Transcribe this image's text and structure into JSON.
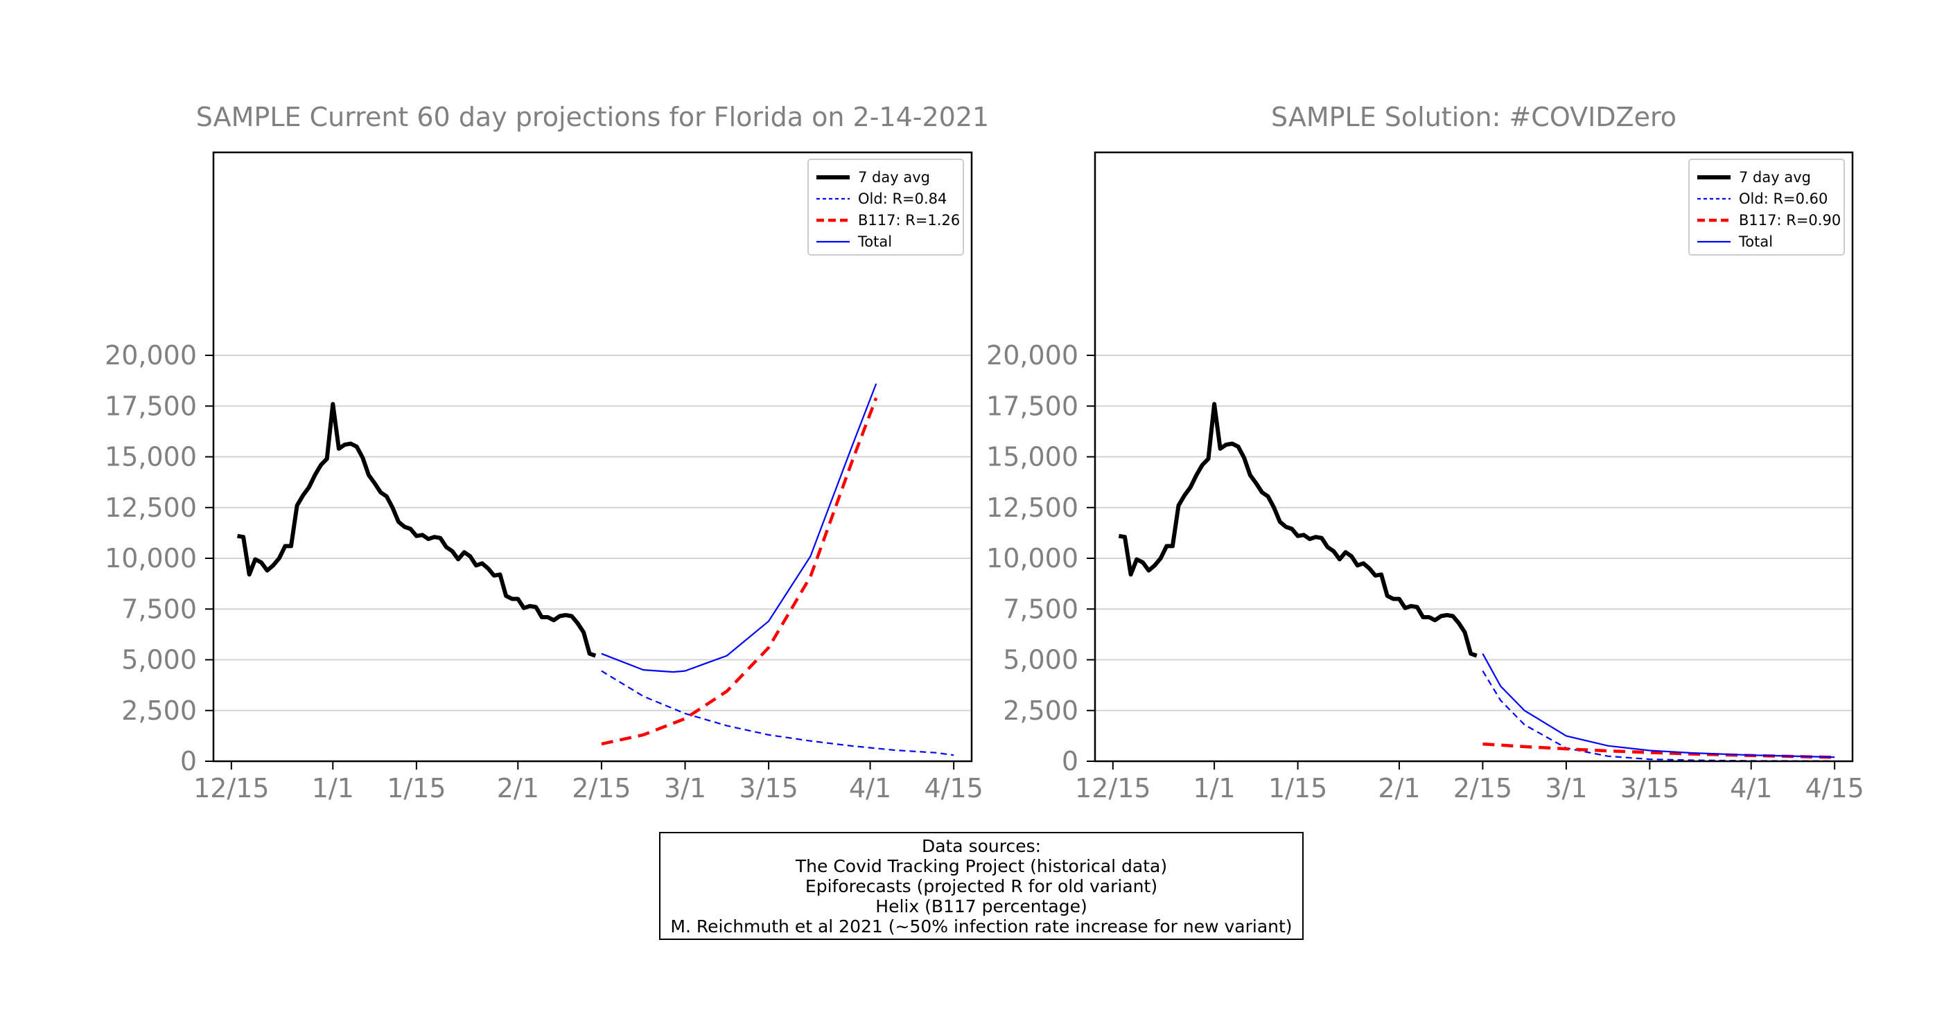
{
  "colors": {
    "actual": "#000000",
    "old": "#0000ff",
    "b117": "#ff0000",
    "total": "#0000ff",
    "grid": "#d3d3d3",
    "text": "#808080"
  },
  "chart_data": [
    {
      "type": "line",
      "title": "SAMPLE Current 60 day projections for Florida on 2-14-2021",
      "xlabel": "",
      "ylabel": "",
      "ylim": [
        0,
        30000
      ],
      "xlim": [
        "2020-12-12",
        "2021-04-18"
      ],
      "grid": "horizontal",
      "legend_position": "top-right",
      "yticks": [
        0,
        2500,
        5000,
        7500,
        10000,
        12500,
        15000,
        17500,
        20000
      ],
      "ytick_labels": [
        "0",
        "2,500",
        "5,000",
        "7,500",
        "10,000",
        "12,500",
        "15,000",
        "17,500",
        "20,000"
      ],
      "xticks": [
        "2020-12-15",
        "2021-01-01",
        "2021-01-15",
        "2021-02-01",
        "2021-02-15",
        "2021-03-01",
        "2021-03-15",
        "2021-04-01",
        "2021-04-15"
      ],
      "xtick_labels": [
        "12/15",
        "1/1",
        "1/15",
        "2/1",
        "2/15",
        "3/1",
        "3/15",
        "4/1",
        "4/15"
      ],
      "series": [
        {
          "name": "7 day avg",
          "style": "actual",
          "x": [
            "2020-12-16",
            "2020-12-17",
            "2020-12-18",
            "2020-12-19",
            "2020-12-20",
            "2020-12-21",
            "2020-12-22",
            "2020-12-23",
            "2020-12-24",
            "2020-12-25",
            "2020-12-26",
            "2020-12-27",
            "2020-12-28",
            "2020-12-29",
            "2020-12-30",
            "2020-12-31",
            "2021-01-01",
            "2021-01-02",
            "2021-01-03",
            "2021-01-04",
            "2021-01-05",
            "2021-01-06",
            "2021-01-07",
            "2021-01-08",
            "2021-01-09",
            "2021-01-10",
            "2021-01-11",
            "2021-01-12",
            "2021-01-13",
            "2021-01-14",
            "2021-01-15",
            "2021-01-16",
            "2021-01-17",
            "2021-01-18",
            "2021-01-19",
            "2021-01-20",
            "2021-01-21",
            "2021-01-22",
            "2021-01-23",
            "2021-01-24",
            "2021-01-25",
            "2021-01-26",
            "2021-01-27",
            "2021-01-28",
            "2021-01-29",
            "2021-01-30",
            "2021-01-31",
            "2021-02-01",
            "2021-02-02",
            "2021-02-03",
            "2021-02-04",
            "2021-02-05",
            "2021-02-06",
            "2021-02-07",
            "2021-02-08",
            "2021-02-09",
            "2021-02-10",
            "2021-02-11",
            "2021-02-12",
            "2021-02-13",
            "2021-02-14"
          ],
          "y": [
            11100,
            11050,
            9200,
            9950,
            9800,
            9400,
            9650,
            10000,
            10600,
            10600,
            12600,
            13100,
            13500,
            14100,
            14600,
            14900,
            17600,
            15400,
            15600,
            15650,
            15500,
            14950,
            14100,
            13700,
            13250,
            13050,
            12500,
            11800,
            11550,
            11450,
            11100,
            11150,
            10950,
            11050,
            11000,
            10550,
            10350,
            9950,
            10300,
            10100,
            9650,
            9750,
            9500,
            9150,
            9200,
            8150,
            8000,
            8000,
            7550,
            7650,
            7600,
            7100,
            7100,
            6950,
            7150,
            7200,
            7150,
            6800,
            6350,
            5300,
            5200
          ]
        },
        {
          "name": "Old: R=0.84",
          "style": "old",
          "x": [
            "2021-02-15",
            "2021-02-22",
            "2021-03-01",
            "2021-03-08",
            "2021-03-15",
            "2021-03-22",
            "2021-03-29",
            "2021-04-05",
            "2021-04-12",
            "2021-04-15"
          ],
          "y": [
            4450,
            3200,
            2350,
            1750,
            1300,
            1000,
            750,
            550,
            420,
            300
          ]
        },
        {
          "name": "B117: R=1.26",
          "style": "b117",
          "x": [
            "2021-02-15",
            "2021-02-22",
            "2021-03-01",
            "2021-03-08",
            "2021-03-15",
            "2021-03-22",
            "2021-03-29",
            "2021-04-02"
          ],
          "y": [
            850,
            1300,
            2100,
            3450,
            5600,
            9100,
            14800,
            17900
          ]
        },
        {
          "name": "Total",
          "style": "total",
          "x": [
            "2021-02-15",
            "2021-02-22",
            "2021-02-27",
            "2021-03-01",
            "2021-03-08",
            "2021-03-15",
            "2021-03-22",
            "2021-03-29",
            "2021-04-02"
          ],
          "y": [
            5300,
            4500,
            4400,
            4450,
            5200,
            6900,
            10100,
            15550,
            18600
          ]
        }
      ]
    },
    {
      "type": "line",
      "title": "SAMPLE Solution: #COVIDZero",
      "xlabel": "",
      "ylabel": "",
      "ylim": [
        0,
        30000
      ],
      "xlim": [
        "2020-12-12",
        "2021-04-18"
      ],
      "grid": "horizontal",
      "legend_position": "top-right",
      "yticks": [
        0,
        2500,
        5000,
        7500,
        10000,
        12500,
        15000,
        17500,
        20000
      ],
      "ytick_labels": [
        "0",
        "2,500",
        "5,000",
        "7,500",
        "10,000",
        "12,500",
        "15,000",
        "17,500",
        "20,000"
      ],
      "xticks": [
        "2020-12-15",
        "2021-01-01",
        "2021-01-15",
        "2021-02-01",
        "2021-02-15",
        "2021-03-01",
        "2021-03-15",
        "2021-04-01",
        "2021-04-15"
      ],
      "xtick_labels": [
        "12/15",
        "1/1",
        "1/15",
        "2/1",
        "2/15",
        "3/1",
        "3/15",
        "4/1",
        "4/15"
      ],
      "series": [
        {
          "name": "7 day avg",
          "style": "actual",
          "x": [
            "2020-12-16",
            "2020-12-17",
            "2020-12-18",
            "2020-12-19",
            "2020-12-20",
            "2020-12-21",
            "2020-12-22",
            "2020-12-23",
            "2020-12-24",
            "2020-12-25",
            "2020-12-26",
            "2020-12-27",
            "2020-12-28",
            "2020-12-29",
            "2020-12-30",
            "2020-12-31",
            "2021-01-01",
            "2021-01-02",
            "2021-01-03",
            "2021-01-04",
            "2021-01-05",
            "2021-01-06",
            "2021-01-07",
            "2021-01-08",
            "2021-01-09",
            "2021-01-10",
            "2021-01-11",
            "2021-01-12",
            "2021-01-13",
            "2021-01-14",
            "2021-01-15",
            "2021-01-16",
            "2021-01-17",
            "2021-01-18",
            "2021-01-19",
            "2021-01-20",
            "2021-01-21",
            "2021-01-22",
            "2021-01-23",
            "2021-01-24",
            "2021-01-25",
            "2021-01-26",
            "2021-01-27",
            "2021-01-28",
            "2021-01-29",
            "2021-01-30",
            "2021-01-31",
            "2021-02-01",
            "2021-02-02",
            "2021-02-03",
            "2021-02-04",
            "2021-02-05",
            "2021-02-06",
            "2021-02-07",
            "2021-02-08",
            "2021-02-09",
            "2021-02-10",
            "2021-02-11",
            "2021-02-12",
            "2021-02-13",
            "2021-02-14"
          ],
          "y": [
            11100,
            11050,
            9200,
            9950,
            9800,
            9400,
            9650,
            10000,
            10600,
            10600,
            12600,
            13100,
            13500,
            14100,
            14600,
            14900,
            17600,
            15400,
            15600,
            15650,
            15500,
            14950,
            14100,
            13700,
            13250,
            13050,
            12500,
            11800,
            11550,
            11450,
            11100,
            11150,
            10950,
            11050,
            11000,
            10550,
            10350,
            9950,
            10300,
            10100,
            9650,
            9750,
            9500,
            9150,
            9200,
            8150,
            8000,
            8000,
            7550,
            7650,
            7600,
            7100,
            7100,
            6950,
            7150,
            7200,
            7150,
            6800,
            6350,
            5300,
            5200
          ]
        },
        {
          "name": "Old: R=0.60",
          "style": "old",
          "x": [
            "2021-02-15",
            "2021-02-18",
            "2021-02-22",
            "2021-03-01",
            "2021-03-08",
            "2021-03-15",
            "2021-03-22",
            "2021-04-01",
            "2021-04-15"
          ],
          "y": [
            4450,
            3000,
            1800,
            650,
            250,
            100,
            50,
            20,
            10
          ]
        },
        {
          "name": "B117: R=0.90",
          "style": "b117",
          "x": [
            "2021-02-15",
            "2021-02-22",
            "2021-03-01",
            "2021-03-08",
            "2021-03-15",
            "2021-03-22",
            "2021-04-01",
            "2021-04-15"
          ],
          "y": [
            850,
            720,
            610,
            510,
            430,
            360,
            280,
            190
          ]
        },
        {
          "name": "Total",
          "style": "total",
          "x": [
            "2021-02-15",
            "2021-02-18",
            "2021-02-22",
            "2021-03-01",
            "2021-03-08",
            "2021-03-15",
            "2021-03-22",
            "2021-04-01",
            "2021-04-15"
          ],
          "y": [
            5300,
            3700,
            2500,
            1250,
            760,
            530,
            410,
            300,
            200
          ]
        }
      ]
    }
  ],
  "sources": {
    "heading": "Data sources:",
    "lines": [
      "The Covid Tracking Project (historical data)",
      "Epiforecasts (projected R for old variant)",
      "Helix (B117 percentage)",
      "M. Reichmuth et al 2021 (~50% infection rate increase for new variant)"
    ]
  }
}
